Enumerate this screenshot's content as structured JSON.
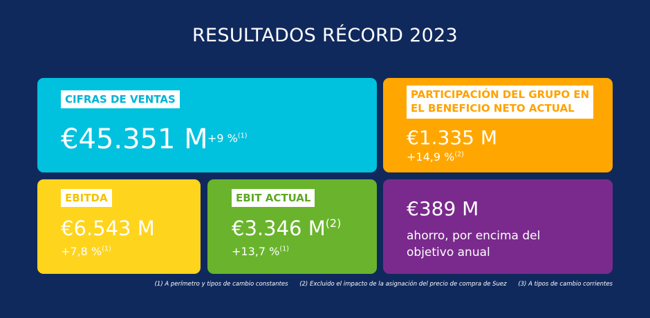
{
  "title": "RESULTADOS RÉCORD 2023",
  "cards": [
    {
      "label": [
        "CIFRAS DE VENTAS"
      ],
      "value": "€45.351 M",
      "change": "+9 %",
      "change_note": "(1)"
    },
    {
      "label": [
        "PARTICIPACIÓN DEL GRUPO EN",
        "EL BENEFICIO NETO ACTUAL"
      ],
      "value": "€1.335 M",
      "change": "+14,9 %",
      "change_note": "(2)"
    },
    {
      "label": [
        "EBITDA"
      ],
      "value": "€6.543 M",
      "change": "+7,8 %",
      "change_note": "(1)"
    },
    {
      "label": [
        "EBIT ACTUAL"
      ],
      "value": "€3.346 M",
      "value_note": "(2)",
      "change": "+13,7 %",
      "change_note": "(1)"
    },
    {
      "value": "€389 M",
      "description": [
        "ahorro, por encima del",
        "objetivo anual"
      ]
    }
  ],
  "footnotes": [
    "(1) A perímetro y tipos de cambio constantes",
    "(2) Excluido el impacto de la asignación del precio de compra de Suez",
    "(3) A tipos de cambio corrientes"
  ]
}
